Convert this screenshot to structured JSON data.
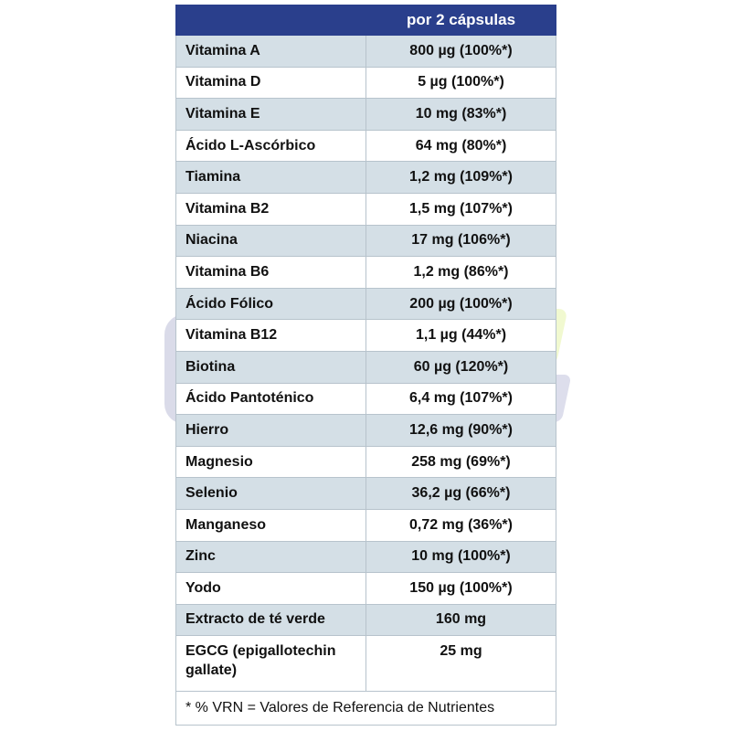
{
  "header": {
    "col1": "",
    "col2": "por 2 cápsulas"
  },
  "rows": [
    {
      "name": "Vitamina A",
      "value": "800 µg (100%*)"
    },
    {
      "name": "Vitamina D",
      "value": "5 µg (100%*)"
    },
    {
      "name": "Vitamina E",
      "value": "10 mg (83%*)"
    },
    {
      "name": "Ácido L-Ascórbico",
      "value": "64 mg (80%*)"
    },
    {
      "name": "Tiamina",
      "value": "1,2 mg (109%*)"
    },
    {
      "name": "Vitamina B2",
      "value": "1,5 mg (107%*)"
    },
    {
      "name": "Niacina",
      "value": "17 mg (106%*)"
    },
    {
      "name": "Vitamina B6",
      "value": "1,2 mg (86%*)"
    },
    {
      "name": "Ácido Fólico",
      "value": "200 µg (100%*)"
    },
    {
      "name": "Vitamina B12",
      "value": "1,1 µg (44%*)"
    },
    {
      "name": "Biotina",
      "value": "60 µg (120%*)"
    },
    {
      "name": "Ácido Pantoténico",
      "value": "6,4 mg (107%*)"
    },
    {
      "name": "Hierro",
      "value": "12,6 mg (90%*)"
    },
    {
      "name": "Magnesio",
      "value": "258 mg (69%*)"
    },
    {
      "name": "Selenio",
      "value": "36,2 µg (66%*)"
    },
    {
      "name": "Manganeso",
      "value": "0,72 mg (36%*)"
    },
    {
      "name": "Zinc",
      "value": "10 mg (100%*)"
    },
    {
      "name": "Yodo",
      "value": "150 µg (100%*)"
    },
    {
      "name": "Extracto de té verde",
      "value": "160 mg"
    },
    {
      "name": "EGCG (epigallotechin gallate)",
      "value": "25 mg"
    }
  ],
  "footnote": "* % VRN = Valores de Referencia de Nutrientes",
  "colors": {
    "header_bg": "#2a3f8c",
    "shade_row": "#d4dfe6",
    "border": "#b7c3cc"
  }
}
